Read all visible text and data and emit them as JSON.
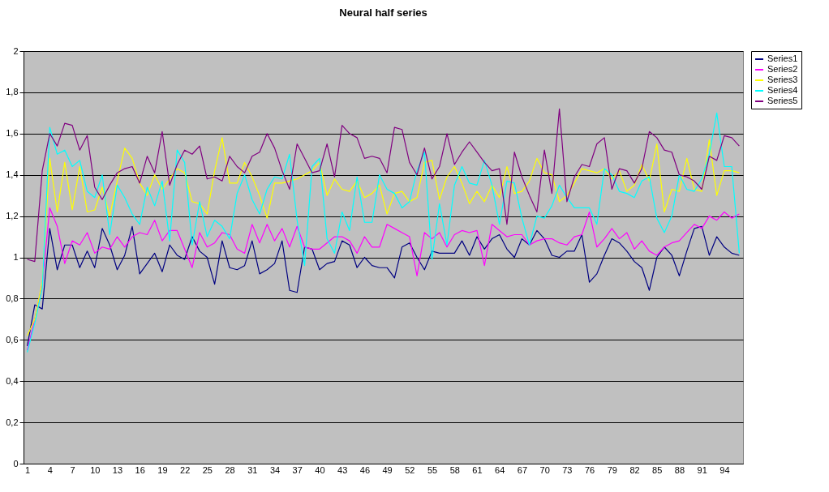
{
  "chart_data": {
    "type": "line",
    "title": "Neural half series",
    "categories": [
      "1",
      null,
      null,
      "4",
      null,
      null,
      "7",
      null,
      null,
      "10",
      null,
      null,
      "13",
      null,
      null,
      "16",
      null,
      null,
      "19",
      null,
      null,
      "22",
      null,
      null,
      "25",
      null,
      null,
      "28",
      null,
      null,
      "31",
      null,
      null,
      "34",
      null,
      null,
      "37",
      null,
      null,
      "40",
      null,
      null,
      "43",
      null,
      null,
      "46",
      null,
      null,
      "49",
      null,
      null,
      "52",
      null,
      null,
      "55",
      null,
      null,
      "58",
      null,
      null,
      "61",
      null,
      null,
      "64",
      null,
      null,
      "67",
      null,
      null,
      "70",
      null,
      null,
      "73",
      null,
      null,
      "76",
      null,
      null,
      "79",
      null,
      null,
      "82",
      null,
      null,
      "85",
      null,
      null,
      "88",
      null,
      null,
      "91",
      null,
      null,
      "94",
      null,
      null
    ],
    "ylim": [
      0,
      2
    ],
    "yticks": [
      0,
      {
        "value": 0.2,
        "label": "0,2"
      },
      {
        "value": 0.4,
        "label": "0,4"
      },
      {
        "value": 0.6,
        "label": "0,6"
      },
      {
        "value": 0.8,
        "label": "0,8"
      },
      1,
      {
        "value": 1.2,
        "label": "1,2"
      },
      {
        "value": 1.4,
        "label": "1,4"
      },
      {
        "value": 1.6,
        "label": "1,6"
      },
      {
        "value": 1.8,
        "label": "1,8"
      },
      2
    ],
    "grid": "y",
    "legend": "right",
    "series": [
      {
        "name": "Series1",
        "color": "#000080",
        "values": [
          0.57,
          0.77,
          0.75,
          1.14,
          0.94,
          1.06,
          1.06,
          0.95,
          1.03,
          0.95,
          1.14,
          1.06,
          0.94,
          1.01,
          1.15,
          0.92,
          0.97,
          1.02,
          0.93,
          1.06,
          1.01,
          0.99,
          1.1,
          1.03,
          1.0,
          0.87,
          1.08,
          0.95,
          0.94,
          0.96,
          1.08,
          0.92,
          0.94,
          0.97,
          1.08,
          0.84,
          0.83,
          1.05,
          1.04,
          0.94,
          0.97,
          0.98,
          1.08,
          1.06,
          0.95,
          1.0,
          0.96,
          0.95,
          0.95,
          0.9,
          1.05,
          1.07,
          1.0,
          0.94,
          1.03,
          1.02,
          1.02,
          1.02,
          1.08,
          1.01,
          1.1,
          1.04,
          1.09,
          1.11,
          1.04,
          1.0,
          1.09,
          1.06,
          1.13,
          1.09,
          1.01,
          1.0,
          1.03,
          1.03,
          1.11,
          0.88,
          0.92,
          1.01,
          1.09,
          1.07,
          1.03,
          0.98,
          0.95,
          0.84,
          1.0,
          1.05,
          1.01,
          0.91,
          1.03,
          1.14,
          1.15,
          1.01,
          1.1,
          1.05,
          1.02,
          1.01
        ]
      },
      {
        "name": "Series2",
        "color": "#ff00ff",
        "values": [
          0.55,
          0.7,
          0.87,
          1.24,
          1.15,
          0.97,
          1.08,
          1.06,
          1.12,
          1.02,
          1.05,
          1.04,
          1.1,
          1.05,
          1.1,
          1.12,
          1.11,
          1.18,
          1.08,
          1.13,
          1.13,
          1.04,
          0.95,
          1.12,
          1.05,
          1.07,
          1.12,
          1.11,
          1.04,
          1.02,
          1.16,
          1.07,
          1.16,
          1.08,
          1.14,
          1.05,
          1.15,
          1.05,
          1.04,
          1.04,
          1.07,
          1.1,
          1.1,
          1.08,
          1.02,
          1.1,
          1.05,
          1.05,
          1.16,
          1.14,
          1.12,
          1.1,
          0.91,
          1.12,
          1.09,
          1.12,
          1.05,
          1.11,
          1.13,
          1.12,
          1.13,
          0.96,
          1.16,
          1.13,
          1.1,
          1.11,
          1.11,
          1.06,
          1.08,
          1.09,
          1.09,
          1.07,
          1.06,
          1.1,
          1.11,
          1.22,
          1.05,
          1.09,
          1.14,
          1.09,
          1.12,
          1.04,
          1.08,
          1.03,
          1.01,
          1.05,
          1.07,
          1.08,
          1.12,
          1.16,
          1.14,
          1.2,
          1.18,
          1.22,
          1.19,
          1.21
        ]
      },
      {
        "name": "Series3",
        "color": "#ffff00",
        "values": [
          0.62,
          0.7,
          0.88,
          1.48,
          1.22,
          1.46,
          1.23,
          1.44,
          1.22,
          1.23,
          1.34,
          1.2,
          1.37,
          1.53,
          1.48,
          1.36,
          1.3,
          1.4,
          1.33,
          1.38,
          1.43,
          1.41,
          1.27,
          1.26,
          1.21,
          1.42,
          1.58,
          1.36,
          1.36,
          1.46,
          1.39,
          1.3,
          1.19,
          1.36,
          1.36,
          1.37,
          1.38,
          1.4,
          1.42,
          1.46,
          1.3,
          1.38,
          1.33,
          1.32,
          1.37,
          1.29,
          1.31,
          1.35,
          1.21,
          1.31,
          1.32,
          1.27,
          1.29,
          1.46,
          1.47,
          1.28,
          1.39,
          1.44,
          1.36,
          1.26,
          1.32,
          1.27,
          1.35,
          1.29,
          1.44,
          1.31,
          1.32,
          1.37,
          1.48,
          1.41,
          1.4,
          1.27,
          1.3,
          1.36,
          1.43,
          1.42,
          1.41,
          1.43,
          1.38,
          1.42,
          1.32,
          1.35,
          1.45,
          1.37,
          1.55,
          1.22,
          1.33,
          1.32,
          1.48,
          1.33,
          1.32,
          1.57,
          1.3,
          1.42,
          1.42,
          1.41
        ]
      },
      {
        "name": "Series4",
        "color": "#00ffff",
        "values": [
          0.54,
          0.68,
          0.85,
          1.63,
          1.5,
          1.52,
          1.44,
          1.47,
          1.32,
          1.29,
          1.4,
          1.11,
          1.35,
          1.29,
          1.21,
          1.16,
          1.34,
          1.25,
          1.37,
          1.08,
          1.52,
          1.46,
          1.06,
          1.27,
          1.1,
          1.18,
          1.15,
          1.09,
          1.31,
          1.4,
          1.28,
          1.21,
          1.33,
          1.39,
          1.38,
          1.5,
          1.18,
          0.96,
          1.44,
          1.48,
          1.09,
          1.02,
          1.22,
          1.13,
          1.39,
          1.17,
          1.17,
          1.4,
          1.33,
          1.31,
          1.24,
          1.27,
          1.42,
          1.51,
          0.99,
          1.26,
          1.06,
          1.35,
          1.44,
          1.36,
          1.35,
          1.47,
          1.35,
          1.16,
          1.37,
          1.36,
          1.19,
          1.06,
          1.2,
          1.19,
          1.25,
          1.35,
          1.29,
          1.24,
          1.24,
          1.24,
          1.16,
          1.43,
          1.4,
          1.32,
          1.31,
          1.29,
          1.37,
          1.39,
          1.19,
          1.12,
          1.2,
          1.4,
          1.33,
          1.32,
          1.38,
          1.5,
          1.7,
          1.44,
          1.44,
          1.02
        ]
      },
      {
        "name": "Series5",
        "color": "#800080",
        "values": [
          0.99,
          0.98,
          1.42,
          1.6,
          1.54,
          1.65,
          1.64,
          1.52,
          1.59,
          1.34,
          1.28,
          1.35,
          1.41,
          1.43,
          1.44,
          1.36,
          1.49,
          1.41,
          1.61,
          1.35,
          1.45,
          1.52,
          1.5,
          1.54,
          1.38,
          1.39,
          1.37,
          1.49,
          1.44,
          1.41,
          1.49,
          1.51,
          1.6,
          1.53,
          1.42,
          1.33,
          1.55,
          1.48,
          1.41,
          1.42,
          1.55,
          1.39,
          1.64,
          1.6,
          1.58,
          1.48,
          1.49,
          1.48,
          1.41,
          1.63,
          1.62,
          1.46,
          1.4,
          1.53,
          1.38,
          1.44,
          1.6,
          1.45,
          1.51,
          1.56,
          1.51,
          1.46,
          1.42,
          1.43,
          1.16,
          1.51,
          1.39,
          1.3,
          1.22,
          1.52,
          1.31,
          1.72,
          1.27,
          1.39,
          1.45,
          1.44,
          1.55,
          1.58,
          1.33,
          1.43,
          1.42,
          1.36,
          1.43,
          1.61,
          1.58,
          1.52,
          1.51,
          1.4,
          1.39,
          1.37,
          1.33,
          1.49,
          1.47,
          1.59,
          1.58,
          1.54
        ]
      }
    ]
  }
}
